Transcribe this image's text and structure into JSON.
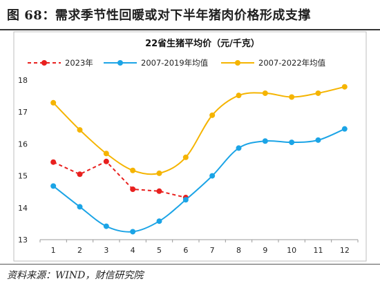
{
  "header": {
    "title": "图 68：需求季节性回暖或对下半年猪肉价格形成支撑"
  },
  "footer": {
    "source": "资料来源：WIND，财信研究院"
  },
  "chart_data": {
    "type": "line",
    "title": "22省生猪平均价（元/千克）",
    "xlabel": "",
    "ylabel": "",
    "categories": [
      "1",
      "2",
      "3",
      "4",
      "5",
      "6",
      "7",
      "8",
      "9",
      "10",
      "11",
      "12"
    ],
    "ylim": [
      13,
      18
    ],
    "yticks": [
      "13",
      "14",
      "15",
      "16",
      "17",
      "18"
    ],
    "grid": false,
    "legend_position": "top",
    "series": [
      {
        "name": "2023年",
        "color": "#e8201e",
        "dashed": true,
        "values": [
          15.43,
          15.05,
          15.45,
          14.58,
          14.52,
          14.32,
          null,
          null,
          null,
          null,
          null,
          null
        ]
      },
      {
        "name": "2007-2019年均值",
        "color": "#1ba4e6",
        "dashed": false,
        "values": [
          14.68,
          14.03,
          13.42,
          13.25,
          13.58,
          14.25,
          15.0,
          15.87,
          16.09,
          16.05,
          16.12,
          16.47
        ]
      },
      {
        "name": "2007-2022年均值",
        "color": "#f5b400",
        "dashed": false,
        "values": [
          17.29,
          16.44,
          15.7,
          15.17,
          15.08,
          15.58,
          16.9,
          17.52,
          17.59,
          17.47,
          17.59,
          17.79
        ]
      }
    ]
  }
}
